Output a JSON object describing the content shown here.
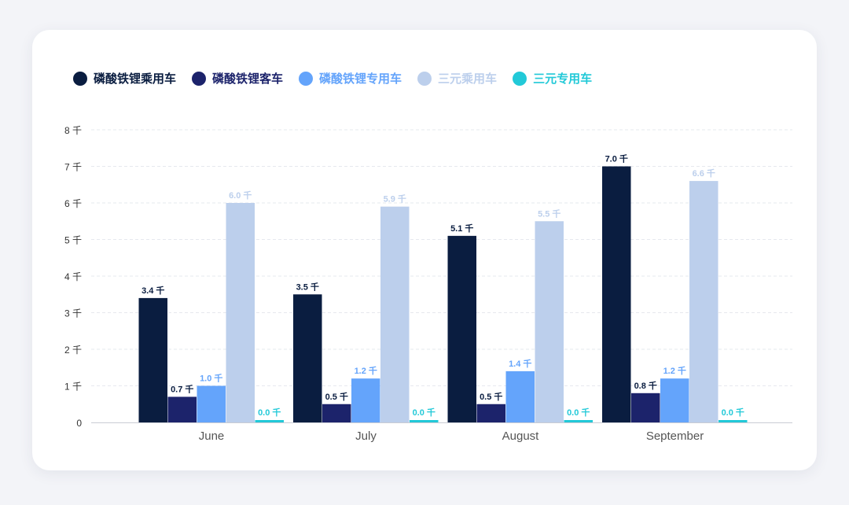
{
  "chart_data": {
    "type": "bar",
    "categories": [
      "June",
      "July",
      "August",
      "September"
    ],
    "series": [
      {
        "name": "磷酸铁锂乘用车",
        "color": "#0a1d40",
        "values": [
          3.4,
          3.5,
          5.1,
          7.0
        ],
        "labels": [
          "3.4 千",
          "3.5 千",
          "5.1 千",
          "7.0 千"
        ]
      },
      {
        "name": "磷酸铁锂客车",
        "color": "#1c236b",
        "values": [
          0.7,
          0.5,
          0.5,
          0.8
        ],
        "labels": [
          "0.7 千",
          "0.5 千",
          "0.5 千",
          "0.8 千"
        ]
      },
      {
        "name": "磷酸铁锂专用车",
        "color": "#64a4fb",
        "values": [
          1.0,
          1.2,
          1.4,
          1.2
        ],
        "labels": [
          "1.0 千",
          "1.2 千",
          "1.4 千",
          "1.2 千"
        ]
      },
      {
        "name": "三元乘用车",
        "color": "#bccfec",
        "values": [
          6.0,
          5.9,
          5.5,
          6.6
        ],
        "labels": [
          "6.0 千",
          "5.9 千",
          "5.5 千",
          "6.6 千"
        ]
      },
      {
        "name": "三元专用车",
        "color": "#22c9d8",
        "values": [
          0.0,
          0.0,
          0.0,
          0.0
        ],
        "labels": [
          "0.0 千",
          "0.0 千",
          "0.0 千",
          "0.0 千"
        ]
      }
    ],
    "y_ticks": [
      0,
      1,
      2,
      3,
      4,
      5,
      6,
      7,
      8
    ],
    "y_tick_labels": [
      "0",
      "1 千",
      "2 千",
      "3 千",
      "4 千",
      "5 千",
      "6 千",
      "7 千",
      "8 千"
    ],
    "ylim": [
      0,
      8
    ],
    "grid": true,
    "legend_position": "top-left"
  }
}
